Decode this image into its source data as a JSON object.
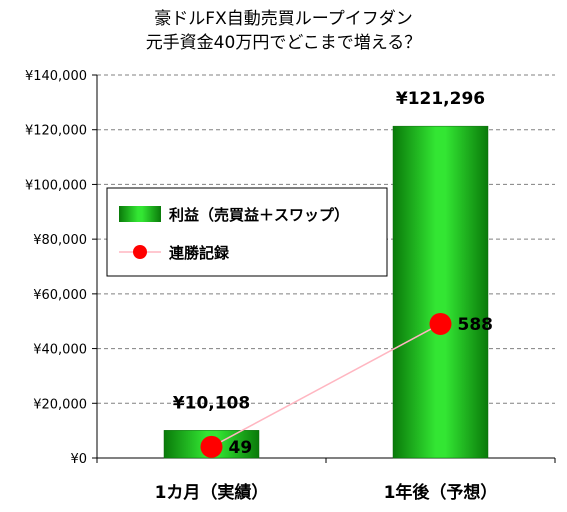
{
  "title_line1": "豪ドルFX自動売買ループイフダン",
  "title_line2": "元手資金40万円でどこまで増える？",
  "chart_data": {
    "type": "bar",
    "categories": [
      "1カ月（実績）",
      "1年後（予想）"
    ],
    "y_tick_labels": [
      "¥0",
      "¥20,000",
      "¥40,000",
      "¥60,000",
      "¥80,000",
      "¥100,000",
      "¥120,000",
      "¥140,000"
    ],
    "ylim": [
      0,
      140000
    ],
    "y_step": 20000,
    "grid": true,
    "series": [
      {
        "name": "利益（売買益＋スワップ）",
        "type": "bar",
        "color": "#19c219",
        "values": [
          10108,
          121296
        ],
        "data_labels": [
          "¥10,108",
          "¥121,296"
        ]
      },
      {
        "name": "連勝記録",
        "type": "line",
        "color": "#ff0000",
        "line_color": "#ffb6c1",
        "values": [
          49,
          588
        ],
        "data_labels": [
          "49",
          "588"
        ],
        "secondary_axis_max": 1680
      }
    ],
    "legend_position": "inside-left"
  }
}
